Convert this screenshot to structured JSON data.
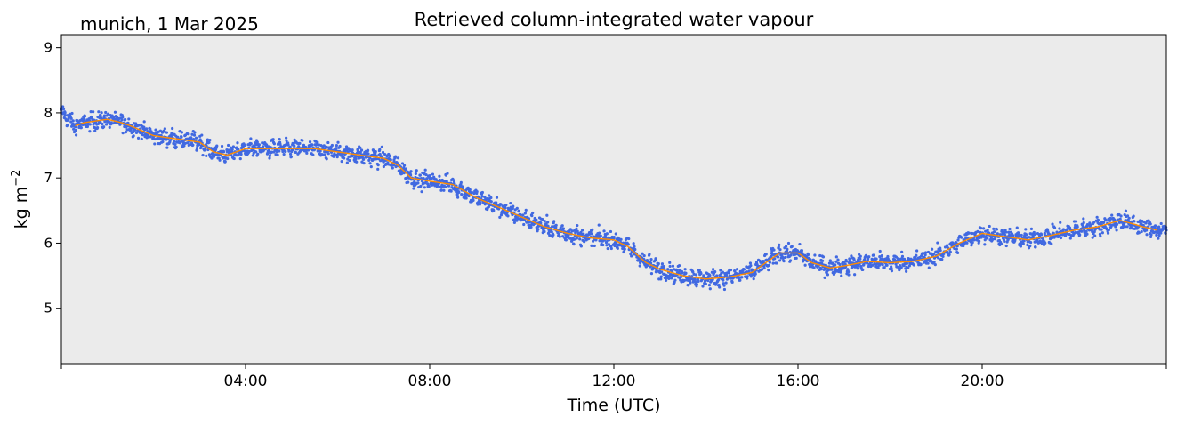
{
  "chart_data": {
    "type": "line",
    "title": "Retrieved column-integrated water vapour",
    "subtitle": "munich, 1 Mar 2025",
    "xlabel": "Time (UTC)",
    "ylabel_main": "kg m",
    "ylabel_sup": "−2",
    "xlim_hours": [
      0,
      24
    ],
    "ylim": [
      4.15,
      9.2
    ],
    "xticks": [
      {
        "h": 0,
        "label": ""
      },
      {
        "h": 4,
        "label": "04:00"
      },
      {
        "h": 8,
        "label": "08:00"
      },
      {
        "h": 12,
        "label": "12:00"
      },
      {
        "h": 16,
        "label": "16:00"
      },
      {
        "h": 20,
        "label": "20:00"
      },
      {
        "h": 24,
        "label": ""
      }
    ],
    "yticks": [
      5,
      6,
      7,
      8,
      9
    ],
    "grid": false,
    "legend": "none",
    "background_color": "#ebebeb",
    "series": [
      {
        "role": "raw",
        "color": "#4169e1",
        "x_hours": [
          0.0,
          0.1,
          0.3,
          0.5,
          1.0,
          1.3,
          1.5,
          2.0,
          2.5,
          3.0,
          3.3,
          3.6,
          4.0,
          4.5,
          5.0,
          5.5,
          6.0,
          6.5,
          7.0,
          7.3,
          7.6,
          8.0,
          8.5,
          9.0,
          9.5,
          10.0,
          10.5,
          11.0,
          11.5,
          12.0,
          12.3,
          12.7,
          13.0,
          13.5,
          14.0,
          14.5,
          15.0,
          15.3,
          15.6,
          16.0,
          16.3,
          16.7,
          17.0,
          17.5,
          18.0,
          18.5,
          19.0,
          19.5,
          20.0,
          20.5,
          21.0,
          21.5,
          22.0,
          22.5,
          23.0,
          23.5,
          23.8,
          24.0
        ],
        "values": [
          8.0,
          7.95,
          7.8,
          7.85,
          7.9,
          7.85,
          7.8,
          7.65,
          7.6,
          7.55,
          7.4,
          7.35,
          7.45,
          7.45,
          7.45,
          7.45,
          7.4,
          7.35,
          7.3,
          7.2,
          7.0,
          6.95,
          6.9,
          6.7,
          6.55,
          6.4,
          6.25,
          6.15,
          6.08,
          6.05,
          5.95,
          5.7,
          5.6,
          5.5,
          5.45,
          5.48,
          5.55,
          5.7,
          5.85,
          5.85,
          5.7,
          5.62,
          5.65,
          5.72,
          5.7,
          5.72,
          5.8,
          6.0,
          6.15,
          6.1,
          6.05,
          6.12,
          6.2,
          6.25,
          6.35,
          6.25,
          6.2,
          6.22
        ],
        "scatter_amplitude": 0.17
      },
      {
        "role": "smoothed",
        "color": "#ff8c00",
        "x_hours": [
          0.3,
          0.5,
          1.0,
          1.3,
          1.5,
          2.0,
          2.5,
          3.0,
          3.3,
          3.6,
          4.0,
          4.5,
          5.0,
          5.5,
          6.0,
          6.5,
          7.0,
          7.3,
          7.6,
          8.0,
          8.5,
          9.0,
          9.5,
          10.0,
          10.5,
          11.0,
          11.5,
          12.0,
          12.3,
          12.7,
          13.0,
          13.5,
          14.0,
          14.5,
          15.0,
          15.3,
          15.6,
          16.0,
          16.3,
          16.7,
          17.0,
          17.5,
          18.0,
          18.5,
          19.0,
          19.5,
          20.0,
          20.5,
          21.0,
          21.5,
          22.0,
          22.5,
          23.0,
          23.5,
          23.8
        ],
        "values": [
          7.8,
          7.85,
          7.9,
          7.85,
          7.8,
          7.65,
          7.6,
          7.55,
          7.4,
          7.35,
          7.45,
          7.45,
          7.45,
          7.45,
          7.4,
          7.35,
          7.3,
          7.2,
          7.0,
          6.95,
          6.9,
          6.7,
          6.55,
          6.4,
          6.25,
          6.15,
          6.08,
          6.05,
          5.95,
          5.7,
          5.6,
          5.5,
          5.45,
          5.48,
          5.55,
          5.7,
          5.85,
          5.85,
          5.7,
          5.62,
          5.65,
          5.72,
          5.7,
          5.72,
          5.8,
          6.0,
          6.15,
          6.1,
          6.05,
          6.12,
          6.2,
          6.25,
          6.35,
          6.25,
          6.2
        ]
      }
    ]
  }
}
